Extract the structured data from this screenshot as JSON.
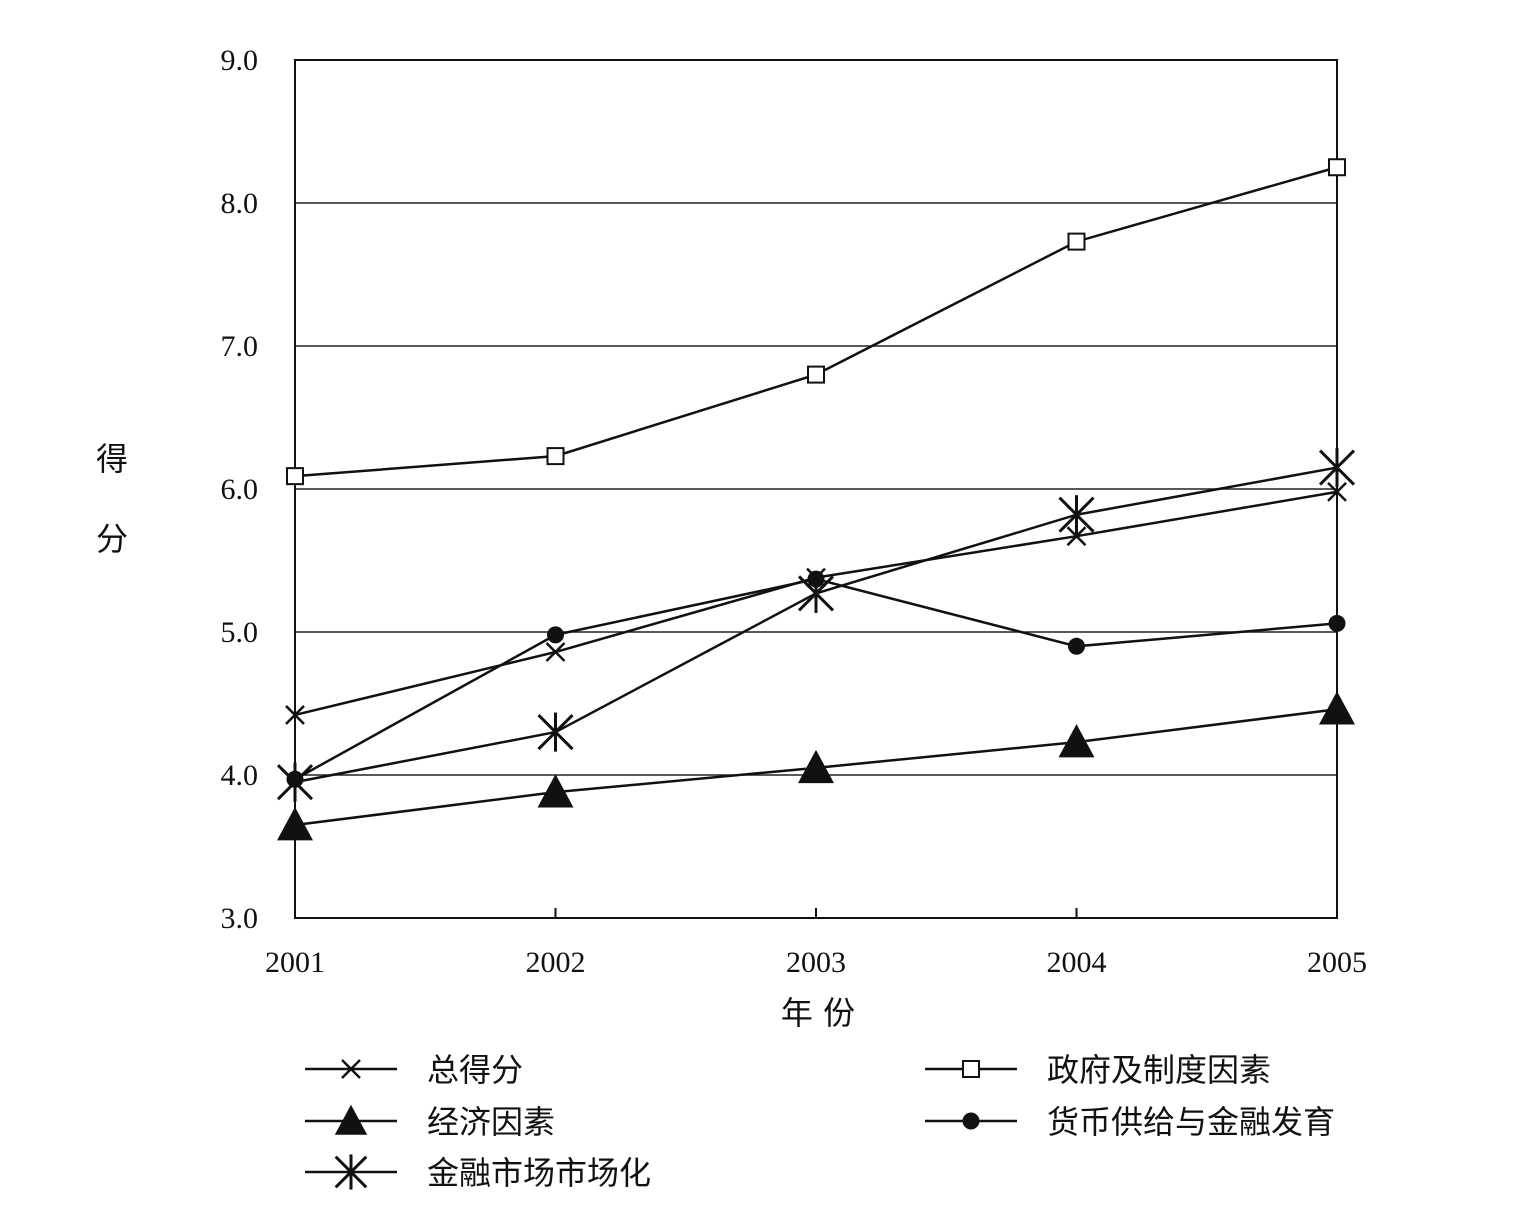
{
  "chart_data": {
    "type": "line",
    "title": "",
    "xlabel": "年 份",
    "ylabel": "得分",
    "x": [
      "2001",
      "2002",
      "2003",
      "2004",
      "2005"
    ],
    "ylim": [
      3.0,
      9.0
    ],
    "yticks": [
      "3.0",
      "4.0",
      "5.0",
      "6.0",
      "7.0",
      "8.0",
      "9.0"
    ],
    "grid": "horizontal",
    "legend_position": "bottom",
    "series": [
      {
        "name": "总得分",
        "marker": "x",
        "values": [
          4.42,
          4.86,
          5.38,
          5.67,
          5.98
        ]
      },
      {
        "name": "政府及制度因素",
        "marker": "open-square",
        "values": [
          6.09,
          6.23,
          6.8,
          7.73,
          8.25
        ]
      },
      {
        "name": "经济因素",
        "marker": "filled-triangle",
        "values": [
          3.65,
          3.88,
          4.05,
          4.23,
          4.46
        ]
      },
      {
        "name": "货币供给与金融发育",
        "marker": "filled-circle",
        "values": [
          3.97,
          4.98,
          5.37,
          4.9,
          5.06
        ]
      },
      {
        "name": "金融市场市场化",
        "marker": "asterisk",
        "values": [
          3.95,
          4.3,
          5.27,
          5.82,
          6.15
        ]
      }
    ]
  }
}
